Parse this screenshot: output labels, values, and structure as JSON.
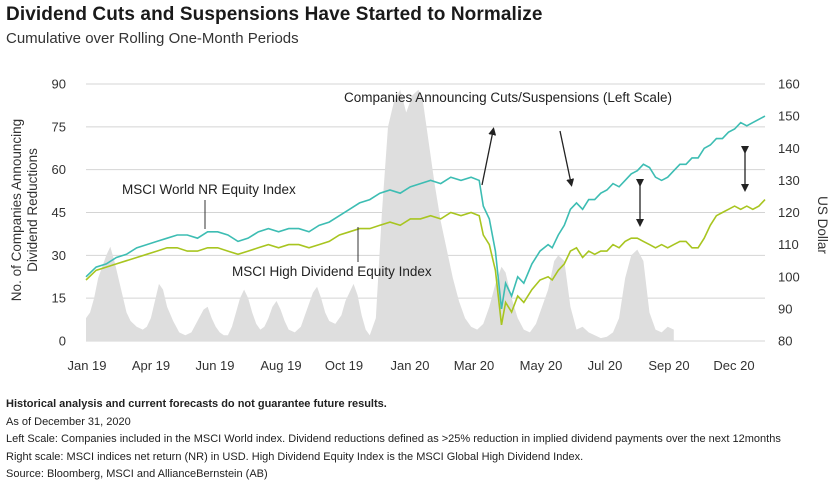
{
  "title": "Dividend Cuts and Suspensions Have Started to Normalize",
  "subtitle": "Cumulative over Rolling One-Month Periods",
  "chart_data": {
    "type": "area+line",
    "x_tick_labels": [
      "Jan 19",
      "Apr 19",
      "Jun 19",
      "Aug 19",
      "Oct 19",
      "Jan 20",
      "Mar 20",
      "May 20",
      "Jul 20",
      "Sep 20",
      "Dec 20"
    ],
    "y_left": {
      "label": "No. of Companies Announcing Dividend Reductions",
      "ticks": [
        0,
        15,
        30,
        45,
        60,
        75,
        90
      ],
      "range": [
        0,
        90
      ]
    },
    "y_right": {
      "label": "US Dollar",
      "ticks": [
        80,
        90,
        100,
        110,
        120,
        130,
        140,
        150,
        160
      ],
      "range": [
        80,
        160
      ]
    },
    "series": [
      {
        "name": "Companies Announcing Cuts/Suspensions (Left Scale)",
        "kind": "area",
        "axis": "left",
        "color": "#dedede",
        "points": [
          [
            0,
            8
          ],
          [
            0.2,
            10
          ],
          [
            0.4,
            15
          ],
          [
            0.6,
            22
          ],
          [
            0.8,
            26
          ],
          [
            1.0,
            30
          ],
          [
            1.2,
            33
          ],
          [
            1.4,
            28
          ],
          [
            1.6,
            22
          ],
          [
            1.8,
            16
          ],
          [
            2.0,
            10
          ],
          [
            2.2,
            7
          ],
          [
            2.5,
            5
          ],
          [
            2.8,
            4
          ],
          [
            3.0,
            5
          ],
          [
            3.2,
            8
          ],
          [
            3.4,
            14
          ],
          [
            3.6,
            20
          ],
          [
            3.8,
            18
          ],
          [
            4.0,
            12
          ],
          [
            4.3,
            7
          ],
          [
            4.6,
            3
          ],
          [
            4.9,
            2
          ],
          [
            5.2,
            3
          ],
          [
            5.5,
            7
          ],
          [
            5.8,
            11
          ],
          [
            6.0,
            12
          ],
          [
            6.2,
            8
          ],
          [
            6.4,
            5
          ],
          [
            6.6,
            3
          ],
          [
            6.8,
            2
          ],
          [
            7.0,
            2
          ],
          [
            7.2,
            5
          ],
          [
            7.4,
            10
          ],
          [
            7.6,
            15
          ],
          [
            7.8,
            18
          ],
          [
            8.0,
            15
          ],
          [
            8.2,
            10
          ],
          [
            8.4,
            6
          ],
          [
            8.6,
            4
          ],
          [
            8.8,
            5
          ],
          [
            9.0,
            8
          ],
          [
            9.2,
            12
          ],
          [
            9.4,
            14
          ],
          [
            9.6,
            11
          ],
          [
            9.8,
            7
          ],
          [
            10.0,
            4
          ],
          [
            10.3,
            3
          ],
          [
            10.6,
            5
          ],
          [
            10.8,
            9
          ],
          [
            11.0,
            13
          ],
          [
            11.2,
            17
          ],
          [
            11.4,
            19
          ],
          [
            11.6,
            15
          ],
          [
            11.8,
            10
          ],
          [
            12.0,
            7
          ],
          [
            12.3,
            6
          ],
          [
            12.6,
            9
          ],
          [
            12.8,
            14
          ],
          [
            13.0,
            17
          ],
          [
            13.2,
            20
          ],
          [
            13.4,
            16
          ],
          [
            13.6,
            9
          ],
          [
            13.8,
            4
          ],
          [
            14.0,
            2
          ],
          [
            14.3,
            8
          ],
          [
            14.6,
            45
          ],
          [
            14.9,
            75
          ],
          [
            15.2,
            84
          ],
          [
            15.5,
            88
          ],
          [
            15.8,
            80
          ],
          [
            16.1,
            86
          ],
          [
            16.4,
            88
          ],
          [
            16.6,
            85
          ],
          [
            16.9,
            70
          ],
          [
            17.2,
            55
          ],
          [
            17.5,
            42
          ],
          [
            17.8,
            32
          ],
          [
            18.1,
            22
          ],
          [
            18.4,
            14
          ],
          [
            18.7,
            8
          ],
          [
            19.0,
            5
          ],
          [
            19.3,
            4
          ],
          [
            19.6,
            6
          ],
          [
            19.9,
            12
          ],
          [
            20.2,
            20
          ],
          [
            20.5,
            26
          ],
          [
            20.7,
            24
          ],
          [
            21.0,
            15
          ],
          [
            21.3,
            8
          ],
          [
            21.6,
            4
          ],
          [
            21.9,
            3
          ],
          [
            22.2,
            6
          ],
          [
            22.5,
            12
          ],
          [
            22.8,
            18
          ],
          [
            23.1,
            28
          ],
          [
            23.3,
            30
          ],
          [
            23.6,
            28
          ],
          [
            23.9,
            12
          ],
          [
            24.2,
            4
          ],
          [
            24.5,
            5
          ],
          [
            24.8,
            3
          ],
          [
            25.1,
            2
          ],
          [
            25.4,
            1
          ],
          [
            25.7,
            1.5
          ],
          [
            26.0,
            3
          ],
          [
            26.3,
            8
          ],
          [
            26.6,
            22
          ],
          [
            26.9,
            30
          ],
          [
            27.2,
            32
          ],
          [
            27.5,
            28
          ],
          [
            27.8,
            10
          ],
          [
            28.1,
            4
          ],
          [
            28.4,
            3
          ],
          [
            28.7,
            5
          ],
          [
            29.0,
            4
          ]
        ]
      },
      {
        "name": "MSCI World NR Equity Index",
        "kind": "line",
        "axis": "right",
        "color": "#3dbdb3",
        "points": [
          [
            0,
            100
          ],
          [
            0.5,
            103
          ],
          [
            1.0,
            104
          ],
          [
            1.5,
            106
          ],
          [
            2.0,
            107
          ],
          [
            2.5,
            109
          ],
          [
            3.0,
            110
          ],
          [
            3.5,
            111
          ],
          [
            4.0,
            112
          ],
          [
            4.5,
            113
          ],
          [
            5.0,
            113
          ],
          [
            5.5,
            112
          ],
          [
            6.0,
            114
          ],
          [
            6.5,
            114
          ],
          [
            7.0,
            113
          ],
          [
            7.5,
            111
          ],
          [
            8.0,
            112
          ],
          [
            8.5,
            114
          ],
          [
            9.0,
            115
          ],
          [
            9.5,
            114
          ],
          [
            10.0,
            115
          ],
          [
            10.5,
            115
          ],
          [
            11.0,
            114
          ],
          [
            11.5,
            116
          ],
          [
            12.0,
            117
          ],
          [
            12.5,
            119
          ],
          [
            13.0,
            121
          ],
          [
            13.5,
            123
          ],
          [
            14.0,
            124
          ],
          [
            14.5,
            126
          ],
          [
            15.0,
            127
          ],
          [
            15.5,
            126
          ],
          [
            16.0,
            128
          ],
          [
            16.5,
            129
          ],
          [
            17.0,
            130
          ],
          [
            17.5,
            129
          ],
          [
            18.0,
            131
          ],
          [
            18.5,
            130
          ],
          [
            19.0,
            131
          ],
          [
            19.4,
            130
          ],
          [
            19.6,
            122
          ],
          [
            19.9,
            118
          ],
          [
            20.2,
            108
          ],
          [
            20.5,
            90
          ],
          [
            20.7,
            98
          ],
          [
            21.0,
            94
          ],
          [
            21.3,
            100
          ],
          [
            21.6,
            98
          ],
          [
            22.0,
            104
          ],
          [
            22.4,
            108
          ],
          [
            22.8,
            110
          ],
          [
            23.0,
            109
          ],
          [
            23.3,
            113
          ],
          [
            23.6,
            116
          ],
          [
            23.9,
            121
          ],
          [
            24.2,
            123
          ],
          [
            24.5,
            121
          ],
          [
            24.8,
            124
          ],
          [
            25.1,
            124
          ],
          [
            25.4,
            126
          ],
          [
            25.7,
            127
          ],
          [
            26.0,
            129
          ],
          [
            26.3,
            128
          ],
          [
            26.6,
            130
          ],
          [
            26.9,
            132
          ],
          [
            27.2,
            133
          ],
          [
            27.5,
            135
          ],
          [
            27.8,
            134
          ],
          [
            28.1,
            131
          ],
          [
            28.4,
            130
          ],
          [
            28.7,
            131
          ],
          [
            29.0,
            133
          ],
          [
            29.3,
            135
          ],
          [
            29.6,
            135
          ],
          [
            29.9,
            137
          ],
          [
            30.2,
            137
          ],
          [
            30.5,
            140
          ],
          [
            30.8,
            141
          ],
          [
            31.1,
            143
          ],
          [
            31.4,
            143
          ],
          [
            31.7,
            145
          ],
          [
            32.0,
            146
          ],
          [
            32.3,
            148
          ],
          [
            32.6,
            147
          ],
          [
            32.9,
            148
          ],
          [
            33.2,
            149
          ],
          [
            33.5,
            150
          ]
        ]
      },
      {
        "name": "MSCI High Dividend Equity Index",
        "kind": "line",
        "axis": "right",
        "color": "#a8c520",
        "points": [
          [
            0,
            99
          ],
          [
            0.5,
            102
          ],
          [
            1.0,
            103
          ],
          [
            1.5,
            104
          ],
          [
            2.0,
            105
          ],
          [
            2.5,
            106
          ],
          [
            3.0,
            107
          ],
          [
            3.5,
            108
          ],
          [
            4.0,
            109
          ],
          [
            4.5,
            109
          ],
          [
            5.0,
            108
          ],
          [
            5.5,
            108
          ],
          [
            6.0,
            109
          ],
          [
            6.5,
            109
          ],
          [
            7.0,
            108
          ],
          [
            7.5,
            107
          ],
          [
            8.0,
            108
          ],
          [
            8.5,
            109
          ],
          [
            9.0,
            110
          ],
          [
            9.5,
            109
          ],
          [
            10.0,
            110
          ],
          [
            10.5,
            110
          ],
          [
            11.0,
            109
          ],
          [
            11.5,
            110
          ],
          [
            12.0,
            111
          ],
          [
            12.5,
            113
          ],
          [
            13.0,
            114
          ],
          [
            13.5,
            115
          ],
          [
            14.0,
            115
          ],
          [
            14.5,
            116
          ],
          [
            15.0,
            117
          ],
          [
            15.5,
            116
          ],
          [
            16.0,
            118
          ],
          [
            16.5,
            118
          ],
          [
            17.0,
            119
          ],
          [
            17.5,
            118
          ],
          [
            18.0,
            120
          ],
          [
            18.5,
            119
          ],
          [
            19.0,
            120
          ],
          [
            19.4,
            119
          ],
          [
            19.6,
            113
          ],
          [
            19.9,
            110
          ],
          [
            20.2,
            102
          ],
          [
            20.5,
            85
          ],
          [
            20.7,
            92
          ],
          [
            21.0,
            89
          ],
          [
            21.3,
            94
          ],
          [
            21.6,
            92
          ],
          [
            22.0,
            96
          ],
          [
            22.4,
            99
          ],
          [
            22.8,
            100
          ],
          [
            23.0,
            99
          ],
          [
            23.3,
            102
          ],
          [
            23.6,
            104
          ],
          [
            23.9,
            108
          ],
          [
            24.2,
            109
          ],
          [
            24.5,
            106
          ],
          [
            24.8,
            108
          ],
          [
            25.1,
            107
          ],
          [
            25.4,
            108
          ],
          [
            25.7,
            108
          ],
          [
            26.0,
            110
          ],
          [
            26.3,
            109
          ],
          [
            26.6,
            111
          ],
          [
            26.9,
            112
          ],
          [
            27.2,
            112
          ],
          [
            27.5,
            111
          ],
          [
            27.8,
            110
          ],
          [
            28.1,
            109
          ],
          [
            28.4,
            110
          ],
          [
            28.7,
            109
          ],
          [
            29.0,
            110
          ],
          [
            29.3,
            111
          ],
          [
            29.6,
            111
          ],
          [
            29.9,
            109
          ],
          [
            30.2,
            109
          ],
          [
            30.5,
            112
          ],
          [
            30.8,
            116
          ],
          [
            31.1,
            119
          ],
          [
            31.4,
            120
          ],
          [
            31.7,
            121
          ],
          [
            32.0,
            122
          ],
          [
            32.3,
            121
          ],
          [
            32.6,
            122
          ],
          [
            32.9,
            121
          ],
          [
            33.2,
            122
          ],
          [
            33.5,
            124
          ]
        ]
      }
    ],
    "annotations": [
      {
        "text": "MSCI World NR Equity Index"
      },
      {
        "text": "MSCI High Dividend Equity Index"
      },
      {
        "text": "Companies Announcing Cuts/Suspensions (Left Scale)"
      }
    ]
  },
  "footnotes": {
    "disclaimer": "Historical analysis and current forecasts do not guarantee future results.",
    "as_of": "As of December 31, 2020",
    "left_scale": "Left Scale: Companies included in the MSCI World index. Dividend reductions defined as >25% reduction in implied dividend payments over the next 12months",
    "right_scale": "Right scale: MSCI indices net return (NR) in USD. High Dividend Equity Index is the MSCI Global High Dividend Index.",
    "source": "Source: Bloomberg, MSCI  and AllianceBernstein (AB)"
  }
}
